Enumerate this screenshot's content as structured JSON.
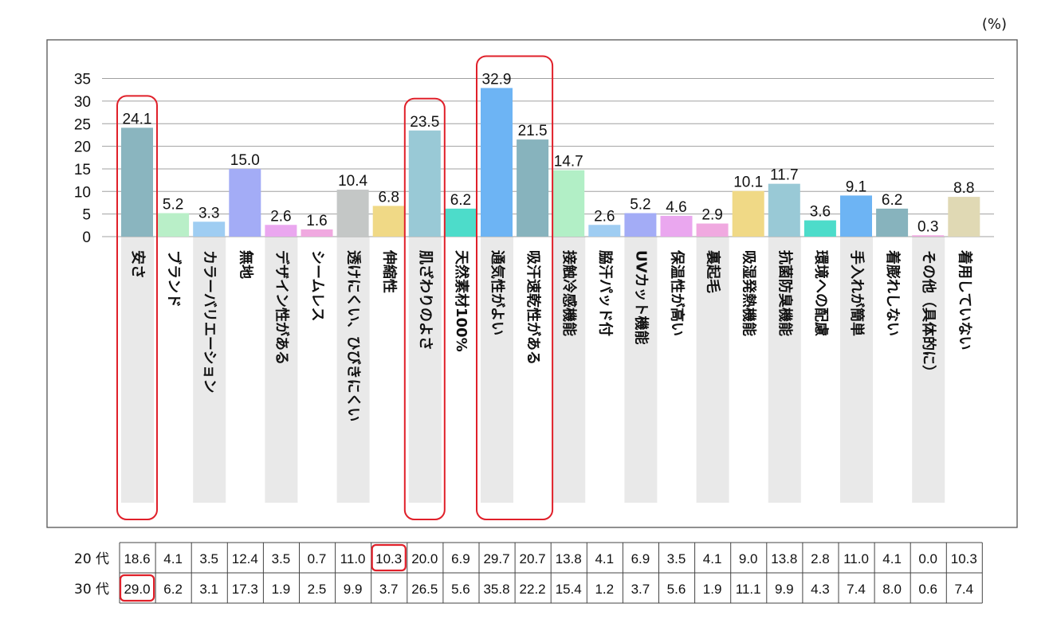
{
  "chart_data": {
    "type": "bar",
    "unit": "(%)",
    "ylim": [
      0,
      35
    ],
    "yticks": [
      "0",
      "5",
      "10",
      "15",
      "20",
      "25",
      "30",
      "35"
    ],
    "grid": true,
    "categories": [
      "安さ",
      "ブランド",
      "カラーバリエーション",
      "無地",
      "デザイン性がある",
      "シームレス",
      "透けにくい、ひびきにくい",
      "伸縮性",
      "肌ざわりのよさ",
      "天然素材100%",
      "通気性がよい",
      "吸汗速乾性がある",
      "接触冷感機能",
      "脇汗パッド付",
      "UVカット機能",
      "保温性が高い",
      "裏起毛",
      "吸湿発熱機能",
      "抗菌防臭機能",
      "環境への配慮",
      "手入れが簡単",
      "着膨れしない",
      "その他（具体的に）",
      "着用していない"
    ],
    "values": [
      24.1,
      5.2,
      3.3,
      15.0,
      2.6,
      1.6,
      10.4,
      6.8,
      23.5,
      6.2,
      32.9,
      21.5,
      14.7,
      2.6,
      5.2,
      4.6,
      2.9,
      10.1,
      11.7,
      3.6,
      9.1,
      6.2,
      0.3,
      8.8
    ],
    "value_labels": [
      "24.1",
      "5.2",
      "3.3",
      "15.0",
      "2.6",
      "1.6",
      "10.4",
      "6.8",
      "23.5",
      "6.2",
      "32.9",
      "21.5",
      "14.7",
      "2.6",
      "5.2",
      "4.6",
      "2.9",
      "10.1",
      "11.7",
      "3.6",
      "9.1",
      "6.2",
      "0.3",
      "8.8"
    ],
    "colors": [
      "#8ab5bf",
      "#b9efc8",
      "#9fcdf2",
      "#a3acf6",
      "#eaa7ef",
      "#f0a9e0",
      "#c4c7c6",
      "#f0d986",
      "#99c9d6",
      "#4ddcca",
      "#6db4f4",
      "#87b3bd",
      "#b2efc6",
      "#9fcdf2",
      "#a3acf6",
      "#eaa7ef",
      "#f0a9e0",
      "#f0d986",
      "#99c9d6",
      "#4ddcca",
      "#6db4f4",
      "#87b3bd",
      "#f0a9e0",
      "#e0d9b4"
    ],
    "highlighted_categories": [
      0,
      8,
      10,
      11
    ],
    "table": {
      "row_labels": [
        "20 代",
        "30 代"
      ],
      "rows": [
        [
          "18.6",
          "4.1",
          "3.5",
          "12.4",
          "3.5",
          "0.7",
          "11.0",
          "10.3",
          "20.0",
          "6.9",
          "29.7",
          "20.7",
          "13.8",
          "4.1",
          "6.9",
          "3.5",
          "4.1",
          "9.0",
          "13.8",
          "2.8",
          "11.0",
          "4.1",
          "0.0",
          "10.3"
        ],
        [
          "29.0",
          "6.2",
          "3.1",
          "17.3",
          "1.9",
          "2.5",
          "9.9",
          "3.7",
          "26.5",
          "5.6",
          "35.8",
          "22.2",
          "15.4",
          "1.2",
          "3.7",
          "5.6",
          "1.9",
          "11.1",
          "9.9",
          "4.3",
          "7.4",
          "8.0",
          "0.6",
          "7.4"
        ]
      ],
      "highlighted_cells": [
        [
          0,
          7
        ],
        [
          1,
          0
        ]
      ]
    }
  },
  "colors": {
    "highlight": "#e0202a",
    "grid": "#a0a0a0",
    "stripe": "#e9e9e9"
  }
}
